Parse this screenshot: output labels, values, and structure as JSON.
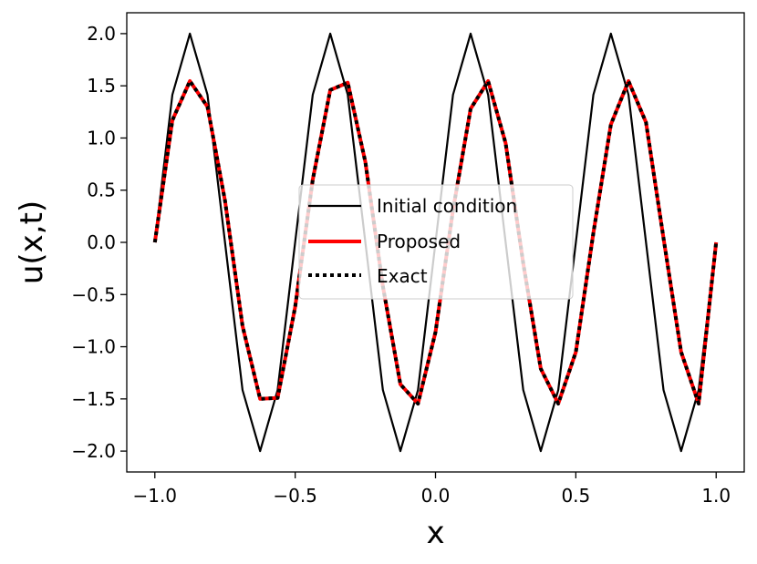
{
  "chart_data": {
    "type": "line",
    "title": "",
    "xlabel": "x",
    "ylabel": "u(x,t)",
    "xlim": [
      -1.1,
      1.1
    ],
    "ylim": [
      -2.2,
      2.2
    ],
    "xticks": [
      -1.0,
      -0.5,
      0.0,
      0.5,
      1.0
    ],
    "xtick_labels": [
      "−1.0",
      "−0.5",
      "0.0",
      "0.5",
      "1.0"
    ],
    "yticks": [
      2.0,
      1.5,
      1.0,
      0.5,
      0.0,
      -0.5,
      -1.0,
      -1.5,
      -2.0
    ],
    "ytick_labels": [
      "2.0",
      "1.5",
      "1.0",
      "0.5",
      "0.0",
      "−0.5",
      "−1.0",
      "−1.5",
      "−2.0"
    ],
    "grid": false,
    "legend_position": "center-right",
    "series": [
      {
        "name": "Initial condition",
        "color": "#000000",
        "style": "solid",
        "x": [
          -1.0,
          -0.9375,
          -0.875,
          -0.8125,
          -0.75,
          -0.6875,
          -0.625,
          -0.5625,
          -0.5,
          -0.4375,
          -0.375,
          -0.3125,
          -0.25,
          -0.1875,
          -0.125,
          -0.0625,
          0.0,
          0.0625,
          0.125,
          0.1875,
          0.25,
          0.3125,
          0.375,
          0.4375,
          0.5,
          0.5625,
          0.625,
          0.6875,
          0.75,
          0.8125,
          0.875,
          0.9375,
          1.0
        ],
        "y": [
          0.0,
          1.414,
          2.0,
          1.414,
          0.0,
          -1.414,
          -2.0,
          -1.414,
          0.0,
          1.414,
          2.0,
          1.414,
          0.0,
          -1.414,
          -2.0,
          -1.414,
          0.0,
          1.414,
          2.0,
          1.414,
          0.0,
          -1.414,
          -2.0,
          -1.414,
          0.0,
          1.414,
          2.0,
          1.414,
          0.0,
          -1.414,
          -2.0,
          -1.414,
          0.0
        ]
      },
      {
        "name": "Proposed",
        "color": "#ff0000",
        "style": "solid",
        "x": [
          -1.0,
          -0.9375,
          -0.875,
          -0.8125,
          -0.75,
          -0.6875,
          -0.625,
          -0.5625,
          -0.5,
          -0.4375,
          -0.375,
          -0.3125,
          -0.25,
          -0.1875,
          -0.125,
          -0.0625,
          0.0,
          0.0625,
          0.125,
          0.1875,
          0.25,
          0.3125,
          0.375,
          0.4375,
          0.5,
          0.5625,
          0.625,
          0.6875,
          0.75,
          0.8125,
          0.875,
          0.9375,
          1.0
        ],
        "y": [
          0.0,
          1.17,
          1.545,
          1.3,
          0.4,
          -0.8,
          -1.5,
          -1.49,
          -0.62,
          0.6,
          1.46,
          1.53,
          0.77,
          -0.42,
          -1.36,
          -1.545,
          -0.86,
          0.31,
          1.28,
          1.545,
          0.95,
          -0.2,
          -1.21,
          -1.545,
          -1.05,
          0.09,
          1.13,
          1.545,
          1.15,
          0.04,
          -1.05,
          -1.545,
          0.0
        ]
      },
      {
        "name": "Exact",
        "color": "#000000",
        "style": "dotted",
        "x": [
          -1.0,
          -0.9375,
          -0.875,
          -0.8125,
          -0.75,
          -0.6875,
          -0.625,
          -0.5625,
          -0.5,
          -0.4375,
          -0.375,
          -0.3125,
          -0.25,
          -0.1875,
          -0.125,
          -0.0625,
          0.0,
          0.0625,
          0.125,
          0.1875,
          0.25,
          0.3125,
          0.375,
          0.4375,
          0.5,
          0.5625,
          0.625,
          0.6875,
          0.75,
          0.8125,
          0.875,
          0.9375,
          1.0
        ],
        "y": [
          0.0,
          1.17,
          1.545,
          1.3,
          0.4,
          -0.8,
          -1.5,
          -1.49,
          -0.62,
          0.6,
          1.46,
          1.53,
          0.77,
          -0.42,
          -1.36,
          -1.545,
          -0.86,
          0.31,
          1.28,
          1.545,
          0.95,
          -0.2,
          -1.21,
          -1.545,
          -1.05,
          0.09,
          1.13,
          1.545,
          1.15,
          0.04,
          -1.05,
          -1.545,
          0.0
        ]
      }
    ]
  }
}
